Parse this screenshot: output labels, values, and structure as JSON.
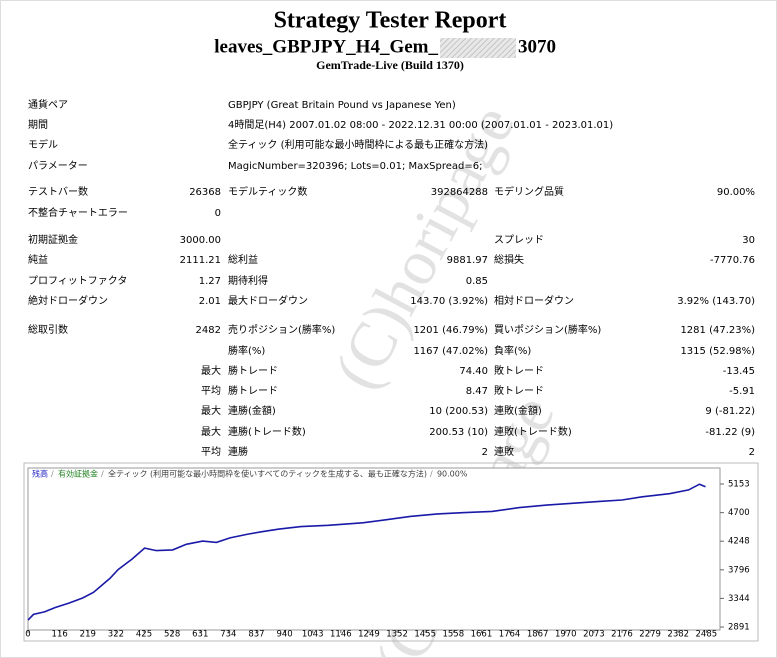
{
  "header": {
    "title": "Strategy Tester Report",
    "subtitle_prefix": "leaves_GBPJPY_H4_Gem_",
    "subtitle_suffix": "3070",
    "build": "GemTrade-Live (Build 1370)"
  },
  "watermark": "(C)horipage",
  "table": {
    "rows": [
      [
        "通貨ペア",
        null,
        "GBPJPY (Great Britain Pound vs Japanese Yen)"
      ],
      [
        "期間",
        null,
        "4時間足(H4) 2007.01.02 08:00 - 2022.12.31 00:00 (2007.01.01 - 2023.01.01)"
      ],
      [
        "モデル",
        null,
        "全ティック (利用可能な最小時間枠による最も正確な方法)"
      ],
      [
        "パラメーター",
        null,
        "MagicNumber=320396; Lots=0.01; MaxSpread=6;"
      ],
      [
        "テストバー数",
        "26368",
        "モデルティック数",
        "392864288",
        "モデリング品質",
        "90.00%"
      ],
      [
        "不整合チャートエラー",
        "0"
      ],
      [
        "初期証拠金",
        "3000.00",
        null,
        null,
        "スプレッド",
        "30"
      ],
      [
        "純益",
        "2111.21",
        "総利益",
        "9881.97",
        "総損失",
        "-7770.76"
      ],
      [
        "プロフィットファクタ",
        "1.27",
        "期待利得",
        "0.85"
      ],
      [
        "絶対ドローダウン",
        "2.01",
        "最大ドローダウン",
        "143.70 (3.92%)",
        "相対ドローダウン",
        "3.92% (143.70)"
      ],
      [
        "総取引数",
        "2482",
        "売りポジション(勝率%)",
        "1201 (46.79%)",
        "買いポジション(勝率%)",
        "1281 (47.23%)"
      ],
      [
        null,
        null,
        "勝率(%)",
        "1167 (47.02%)",
        "負率(%)",
        "1315 (52.98%)"
      ],
      [
        null,
        "最大",
        "勝トレード",
        "74.40",
        "敗トレード",
        "-13.45"
      ],
      [
        null,
        "平均",
        "勝トレード",
        "8.47",
        "敗トレード",
        "-5.91"
      ],
      [
        null,
        "最大",
        "連勝(金額)",
        "10 (200.53)",
        "連敗(金額)",
        "9 (-81.22)"
      ],
      [
        null,
        "最大",
        "連勝(トレード数)",
        "200.53 (10)",
        "連敗(トレード数)",
        "-81.22 (9)"
      ],
      [
        null,
        "平均",
        "連勝",
        "2",
        "連敗",
        "2"
      ]
    ]
  },
  "chart_data": {
    "type": "line",
    "legend": [
      "残高",
      "有効証拠金",
      "全ティック (利用可能な最小時間枠を使いすべてのティックを生成する、最も正確な方法)",
      "90.00%"
    ],
    "legend_colors": [
      "#2020c0",
      "#208020",
      "#404040",
      "#404040"
    ],
    "x": [
      0,
      20,
      60,
      100,
      150,
      200,
      240,
      300,
      330,
      380,
      427,
      470,
      530,
      580,
      640,
      690,
      740,
      806,
      860,
      920,
      1000,
      1100,
      1226,
      1300,
      1400,
      1500,
      1600,
      1700,
      1800,
      1900,
      2000,
      2100,
      2176,
      2250,
      2350,
      2420,
      2460,
      2482
    ],
    "series": [
      {
        "color": "#1a1aa8",
        "values": [
          3000,
          3090,
          3130,
          3200,
          3270,
          3350,
          3440,
          3660,
          3800,
          3960,
          4140,
          4100,
          4110,
          4200,
          4250,
          4230,
          4300,
          4360,
          4400,
          4440,
          4480,
          4500,
          4540,
          4580,
          4640,
          4680,
          4700,
          4720,
          4780,
          4820,
          4850,
          4880,
          4900,
          4950,
          5000,
          5060,
          5150,
          5111
        ]
      }
    ],
    "xlim": [
      0,
      2535
    ],
    "ylim": [
      2844,
      5406
    ],
    "xticks": [
      0,
      116,
      219,
      322,
      425,
      528,
      631,
      734,
      837,
      940,
      1043,
      1146,
      1249,
      1352,
      1455,
      1558,
      1661,
      1764,
      1867,
      1970,
      2073,
      2176,
      2279,
      2382,
      2485
    ],
    "yticks": [
      2891,
      3344,
      3796,
      4248,
      4700,
      5153
    ]
  }
}
